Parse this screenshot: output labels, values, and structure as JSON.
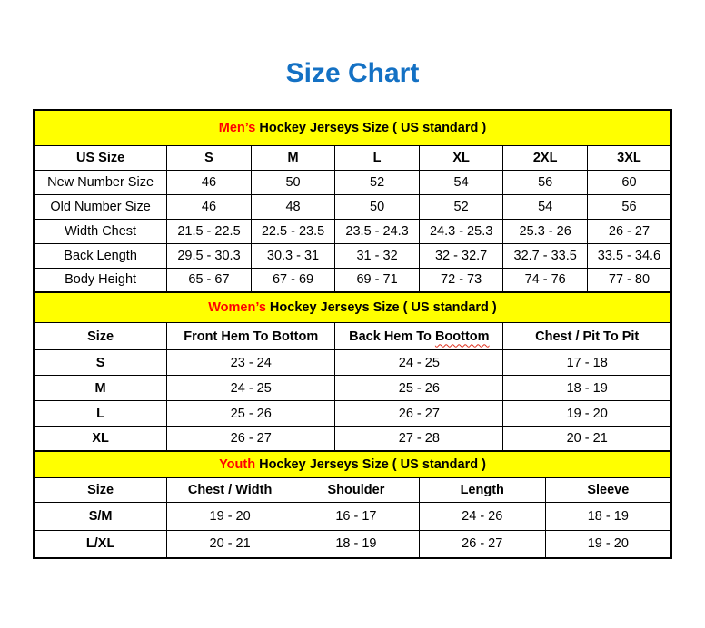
{
  "page_title": "Size Chart",
  "colors": {
    "title_blue": "#1471C4",
    "band_yellow": "#FFFF00",
    "accent_red": "#FF0000",
    "table_border": "#000000",
    "spellcheck_underline": "#E0301E"
  },
  "sections": [
    {
      "name": "mens",
      "band": {
        "segments": [
          {
            "text": "Men’s ",
            "red": true
          },
          {
            "text": "Hockey Jerseys Size ( US standard )"
          }
        ]
      },
      "header": [
        "US Size",
        "S",
        "M",
        "L",
        "XL",
        "2XL",
        "3XL"
      ],
      "rows": [
        [
          "New Number Size",
          "46",
          "50",
          "52",
          "54",
          "56",
          "60"
        ],
        [
          "Old Number Size",
          "46",
          "48",
          "50",
          "52",
          "54",
          "56"
        ],
        [
          "Width Chest",
          "21.5 - 22.5",
          "22.5 - 23.5",
          "23.5 - 24.3",
          "24.3 - 25.3",
          "25.3 - 26",
          "26 - 27"
        ],
        [
          "Back Length",
          "29.5 - 30.3",
          "30.3 - 31",
          "31 - 32",
          "32 - 32.7",
          "32.7 - 33.5",
          "33.5 - 34.6"
        ],
        [
          "Body Height",
          "65 - 67",
          "67 - 69",
          "69 - 71",
          "72 - 73",
          "74 - 76",
          "77 - 80"
        ]
      ]
    },
    {
      "name": "womens",
      "band": {
        "segments": [
          {
            "text": "Women’s ",
            "red": true
          },
          {
            "text": "Hockey Jerseys Size ( US standard )"
          }
        ]
      },
      "header": [
        "Size",
        "Front Hem To Bottom",
        {
          "segments": [
            {
              "text": "Back Hem To "
            },
            {
              "text": "Boottom",
              "squiggle": true
            }
          ]
        },
        "Chest / Pit To Pit"
      ],
      "rows": [
        [
          "S",
          "23 - 24",
          "24 - 25",
          "17 - 18"
        ],
        [
          "M",
          "24 - 25",
          "25 - 26",
          "18 - 19"
        ],
        [
          "L",
          "25 - 26",
          "26 - 27",
          "19 - 20"
        ],
        [
          "XL",
          "26 - 27",
          "27 - 28",
          "20 - 21"
        ]
      ]
    },
    {
      "name": "youth",
      "band": {
        "segments": [
          {
            "text": "Youth ",
            "red": true
          },
          {
            "text": "Hockey Jerseys Size ( US standard )"
          }
        ]
      },
      "header": [
        "Size",
        "Chest / Width",
        "Shoulder",
        "Length",
        "Sleeve"
      ],
      "rows": [
        [
          "S/M",
          "19 - 20",
          "16 - 17",
          "24 - 26",
          "18 - 19"
        ],
        [
          "L/XL",
          "20 - 21",
          "18 - 19",
          "26 - 27",
          "19 - 20"
        ]
      ]
    }
  ]
}
